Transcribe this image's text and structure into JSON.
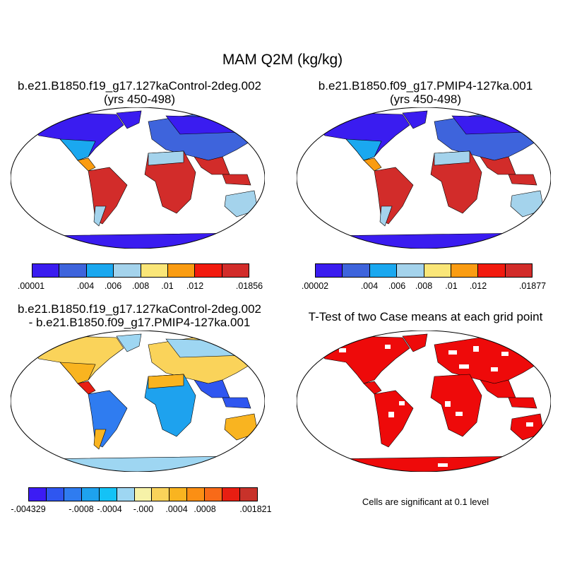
{
  "title": "MAM Q2M (kg/kg)",
  "panels": [
    {
      "title1": "b.e21.B1850.f19_g17.127kaControl-2deg.002",
      "title2": "(yrs 450-498)"
    },
    {
      "title1": "b.e21.B1850.f09_g17.PMIP4-127ka.001",
      "title2": "(yrs 450-498)"
    },
    {
      "title1": "b.e21.B1850.f19_g17.127kaControl-2deg.002",
      "title2": "- b.e21.B1850.f09_g17.PMIP4-127ka.001"
    },
    {
      "title1": "T-Test of two Case means at each grid point"
    }
  ],
  "colorbars": {
    "cb1": {
      "colors": [
        "#3a1cf0",
        "#3e64dc",
        "#1aa8f0",
        "#a4d3ec",
        "#fae678",
        "#fa9c12",
        "#f21a0e",
        "#d22c2a"
      ],
      "labels": [
        ".00001",
        ".004",
        ".006",
        ".008",
        ".01",
        ".012",
        ".01856"
      ]
    },
    "cb2": {
      "colors": [
        "#3a1cf0",
        "#3e64dc",
        "#1aa8f0",
        "#a4d3ec",
        "#fae678",
        "#fa9c12",
        "#f21a0e",
        "#d22c2a"
      ],
      "labels": [
        ".00002",
        ".004",
        ".006",
        ".008",
        ".01",
        ".012",
        ".01877"
      ]
    },
    "cb3": {
      "colors": [
        "#3c1cf4",
        "#2f56f0",
        "#2f7cf0",
        "#1ea2ee",
        "#14c2f6",
        "#9ed6f2",
        "#f6f2a8",
        "#fad35a",
        "#f9b420",
        "#fb8f14",
        "#f86a18",
        "#e81e12",
        "#c8322a"
      ],
      "labels": [
        "-.004329",
        "-.0008",
        "-.0004",
        "-.000",
        ".0004",
        ".0008",
        ".001821"
      ]
    }
  },
  "significance_note": "Cells are significant at 0.1 level"
}
